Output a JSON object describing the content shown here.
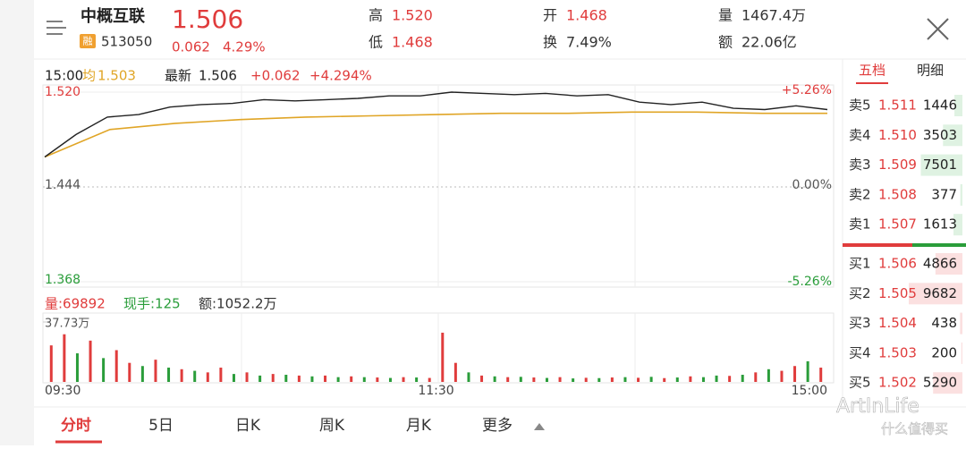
{
  "header": {
    "name": "中概互联",
    "badge": "融",
    "code": "513050",
    "price": "1.506",
    "change": "0.062",
    "pct": "4.29%",
    "high_label": "高",
    "high": "1.520",
    "low_label": "低",
    "low": "1.468",
    "open_label": "开",
    "open": "1.468",
    "turnover_label": "换",
    "turnover": "7.49%",
    "volume_label": "量",
    "volume": "1467.4万",
    "amount_label": "额",
    "amount": "22.06亿"
  },
  "side_tabs": [
    "五档",
    "明细"
  ],
  "order_book": {
    "asks": [
      {
        "label": "卖5",
        "price": "1.511",
        "qty": 1446
      },
      {
        "label": "卖4",
        "price": "1.510",
        "qty": 3503
      },
      {
        "label": "卖3",
        "price": "1.509",
        "qty": 7501
      },
      {
        "label": "卖2",
        "price": "1.508",
        "qty": 377
      },
      {
        "label": "卖1",
        "price": "1.507",
        "qty": 1613
      }
    ],
    "bids": [
      {
        "label": "买1",
        "price": "1.506",
        "qty": 4866
      },
      {
        "label": "买2",
        "price": "1.505",
        "qty": 9682
      },
      {
        "label": "买3",
        "price": "1.504",
        "qty": 438
      },
      {
        "label": "买4",
        "price": "1.503",
        "qty": 200
      },
      {
        "label": "买5",
        "price": "1.502",
        "qty": 5290
      }
    ]
  },
  "price_chart": {
    "time": "15:00",
    "avg_label": "均",
    "avg": "1.503",
    "latest_label": "最新",
    "latest": "1.506",
    "change": "+0.062",
    "pct": "+4.294%",
    "ylim": [
      1.368,
      1.52
    ],
    "yticks": [
      {
        "value": 1.52,
        "label": "1.520"
      },
      {
        "value": 1.444,
        "label": "1.444"
      },
      {
        "value": 1.368,
        "label": "1.368"
      }
    ],
    "y2lim": [
      -5.26,
      5.26
    ],
    "y2ticks": [
      {
        "value": 5.26,
        "label": "+5.26%"
      },
      {
        "value": 0,
        "label": "0.00%"
      },
      {
        "value": -5.26,
        "label": "-5.26%"
      }
    ],
    "xticks": [
      "09:30",
      "11:30",
      "15:00"
    ],
    "price": {
      "color": "#222222",
      "values": [
        1.468,
        1.486,
        1.5,
        1.502,
        1.508,
        1.51,
        1.511,
        1.514,
        1.513,
        1.514,
        1.515,
        1.517,
        1.517,
        1.52,
        1.519,
        1.518,
        1.519,
        1.517,
        1.518,
        1.512,
        1.51,
        1.512,
        1.507,
        1.506,
        1.509,
        1.506
      ]
    },
    "average": {
      "color": "#e0a526",
      "values": [
        1.468,
        1.49,
        1.495,
        1.498,
        1.5,
        1.501,
        1.502,
        1.503,
        1.503,
        1.504,
        1.504,
        1.503,
        1.503
      ]
    }
  },
  "volume_chart": {
    "volume": "量:69892",
    "hand": "现手:125",
    "amount": "额:1052.2万",
    "ylim": [
      0,
      377300
    ],
    "yticks": [
      {
        "value": 377300,
        "label": "37.73万"
      }
    ],
    "values": [
      230000,
      300000,
      180000,
      260000,
      150000,
      200000,
      120000,
      100000,
      140000,
      90000,
      80000,
      70000,
      60000,
      90000,
      50000,
      60000,
      40000,
      50000,
      45000,
      40000,
      35000,
      40000,
      30000,
      35000,
      30000,
      28000,
      25000,
      30000,
      28000,
      25000,
      310000,
      120000,
      60000,
      40000,
      35000,
      30000,
      32000,
      28000,
      25000,
      30000,
      22000,
      26000,
      24000,
      28000,
      30000,
      26000,
      32000,
      24000,
      28000,
      35000,
      30000,
      40000,
      38000,
      45000,
      60000,
      80000,
      70000,
      100000,
      130000,
      90000
    ],
    "colors": [
      "#e03c3c",
      "#e03c3c",
      "#2a9d3a",
      "#e03c3c",
      "#2a9d3a",
      "#e03c3c",
      "#e03c3c",
      "#2a9d3a",
      "#e03c3c",
      "#2a9d3a",
      "#e03c3c",
      "#2a9d3a",
      "#e03c3c",
      "#e03c3c",
      "#2a9d3a",
      "#e03c3c",
      "#2a9d3a",
      "#e03c3c",
      "#2a9d3a",
      "#e03c3c",
      "#2a9d3a",
      "#e03c3c",
      "#2a9d3a",
      "#e03c3c",
      "#2a9d3a",
      "#e03c3c",
      "#2a9d3a",
      "#e03c3c",
      "#2a9d3a",
      "#e03c3c",
      "#e03c3c",
      "#e03c3c",
      "#2a9d3a",
      "#e03c3c",
      "#2a9d3a",
      "#e03c3c",
      "#2a9d3a",
      "#e03c3c",
      "#2a9d3a",
      "#e03c3c",
      "#2a9d3a",
      "#e03c3c",
      "#2a9d3a",
      "#e03c3c",
      "#2a9d3a",
      "#e03c3c",
      "#2a9d3a",
      "#e03c3c",
      "#2a9d3a",
      "#e03c3c",
      "#2a9d3a",
      "#2a9d3a",
      "#e03c3c",
      "#2a9d3a",
      "#e03c3c",
      "#2a9d3a",
      "#e03c3c",
      "#e03c3c",
      "#2a9d3a",
      "#e03c3c"
    ]
  },
  "bottom_tabs": [
    "分时",
    "5日",
    "日K",
    "周K",
    "月K",
    "更多"
  ],
  "watermark": [
    "ArtInLife",
    "什么值得买"
  ]
}
